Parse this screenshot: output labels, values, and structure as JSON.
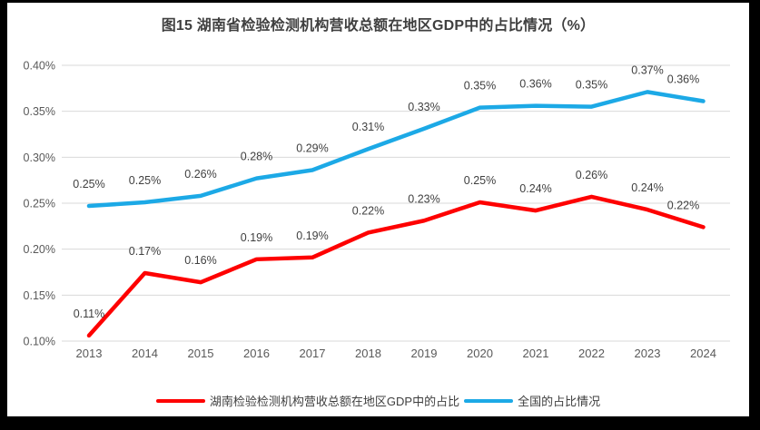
{
  "window": {
    "frame_color": "#000000",
    "panel_background": "#ffffff"
  },
  "chart_data": {
    "type": "line",
    "title": "图15 湖南省检验检测机构营收总额在地区GDP中的占比情况（%）",
    "categories": [
      "2013",
      "2014",
      "2015",
      "2016",
      "2017",
      "2018",
      "2019",
      "2020",
      "2021",
      "2022",
      "2023",
      "2024"
    ],
    "xlabel": "",
    "ylabel": "",
    "ylim": [
      0.1,
      0.4
    ],
    "ytick_step": 0.05,
    "ytick_labels": [
      "0.10%",
      "0.15%",
      "0.20%",
      "0.25%",
      "0.30%",
      "0.35%",
      "0.40%"
    ],
    "grid": true,
    "legend_position": "bottom",
    "gridline_color": "#d9d9d9",
    "tick_color": "#595959",
    "data_label_color": "#404040",
    "series": [
      {
        "name": "湖南检验检测机构营收总额在地区GDP中的占比",
        "color": "#fe0000",
        "values": [
          0.11,
          0.17,
          0.16,
          0.19,
          0.19,
          0.22,
          0.23,
          0.25,
          0.24,
          0.26,
          0.24,
          0.22
        ],
        "labels": [
          "0.11%",
          "0.17%",
          "0.16%",
          "0.19%",
          "0.19%",
          "0.22%",
          "0.23%",
          "0.25%",
          "0.24%",
          "0.26%",
          "0.24%",
          "0.22%"
        ],
        "plot_values": [
          0.106,
          0.174,
          0.164,
          0.189,
          0.191,
          0.218,
          0.231,
          0.251,
          0.242,
          0.257,
          0.243,
          0.224
        ]
      },
      {
        "name": "全国的占比情况",
        "color": "#1ca9e6",
        "values": [
          0.25,
          0.25,
          0.26,
          0.28,
          0.29,
          0.31,
          0.33,
          0.35,
          0.36,
          0.35,
          0.37,
          0.36
        ],
        "labels": [
          "0.25%",
          "0.25%",
          "0.26%",
          "0.28%",
          "0.29%",
          "0.31%",
          "0.33%",
          "0.35%",
          "0.36%",
          "0.35%",
          "0.37%",
          "0.36%"
        ],
        "plot_values": [
          0.247,
          0.251,
          0.258,
          0.277,
          0.286,
          0.309,
          0.331,
          0.354,
          0.356,
          0.355,
          0.371,
          0.361
        ]
      }
    ]
  }
}
